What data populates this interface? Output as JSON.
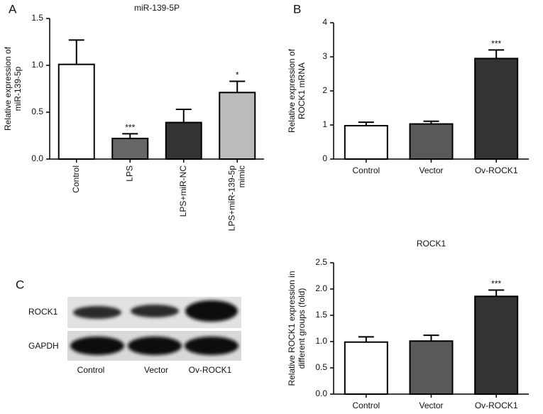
{
  "chart_data": [
    {
      "type": "bar",
      "panel": "A",
      "title": "miR-139-5P",
      "y_label": [
        "Relative expression of",
        "miR-139-5p"
      ],
      "categories": [
        "Control",
        "LPS",
        "LPS+miR-NC",
        [
          "LPS+miR-139-5p",
          "mimic"
        ]
      ],
      "values": [
        1.01,
        0.22,
        0.39,
        0.71
      ],
      "errors": [
        0.26,
        0.05,
        0.14,
        0.12
      ],
      "colors": [
        "#ffffff",
        "#666666",
        "#333333",
        "#bbbbbb"
      ],
      "significance": [
        null,
        "***",
        null,
        "*"
      ],
      "ylim": [
        0,
        1.5
      ],
      "yticks": [
        {
          "value": 0,
          "label": "0.0"
        },
        {
          "value": 0.5,
          "label": "0.5"
        },
        {
          "value": 1,
          "label": "1.0"
        },
        {
          "value": 1.5,
          "label": "1.5"
        }
      ]
    },
    {
      "type": "bar",
      "panel": "B",
      "y_label": [
        "Relative expression of",
        "ROCK1 mRNA"
      ],
      "categories": [
        "Control",
        "Vector",
        "Ov-ROCK1"
      ],
      "values": [
        0.98,
        1.03,
        2.95
      ],
      "errors": [
        0.1,
        0.08,
        0.25
      ],
      "colors": [
        "#ffffff",
        "#595959",
        "#333333"
      ],
      "significance": [
        null,
        null,
        "***"
      ],
      "ylim": [
        0,
        4
      ],
      "yticks": [
        0,
        1,
        2,
        3,
        4
      ]
    },
    {
      "type": "bar",
      "title": "ROCK1",
      "y_label": [
        "Relative ROCK1 expression in",
        "different groups (fold)"
      ],
      "categories": [
        "Control",
        "Vector",
        "Ov-ROCK1"
      ],
      "values": [
        0.99,
        1.01,
        1.86
      ],
      "errors": [
        0.1,
        0.11,
        0.12
      ],
      "colors": [
        "#ffffff",
        "#595959",
        "#333333"
      ],
      "significance": [
        null,
        null,
        "***"
      ],
      "ylim": [
        0,
        2.5
      ],
      "yticks": [
        {
          "value": 0,
          "label": "0.0"
        },
        {
          "value": 0.5,
          "label": "0.5"
        },
        {
          "value": 1,
          "label": "1.0"
        },
        {
          "value": 1.5,
          "label": "1.5"
        },
        {
          "value": 2,
          "label": "2.0"
        },
        {
          "value": 2.5,
          "label": "2.5"
        }
      ]
    }
  ],
  "blot": {
    "panel": "C",
    "rows": [
      "ROCK1",
      "GAPDH"
    ],
    "lanes": [
      "Control",
      "Vector",
      "Ov-ROCK1"
    ]
  }
}
